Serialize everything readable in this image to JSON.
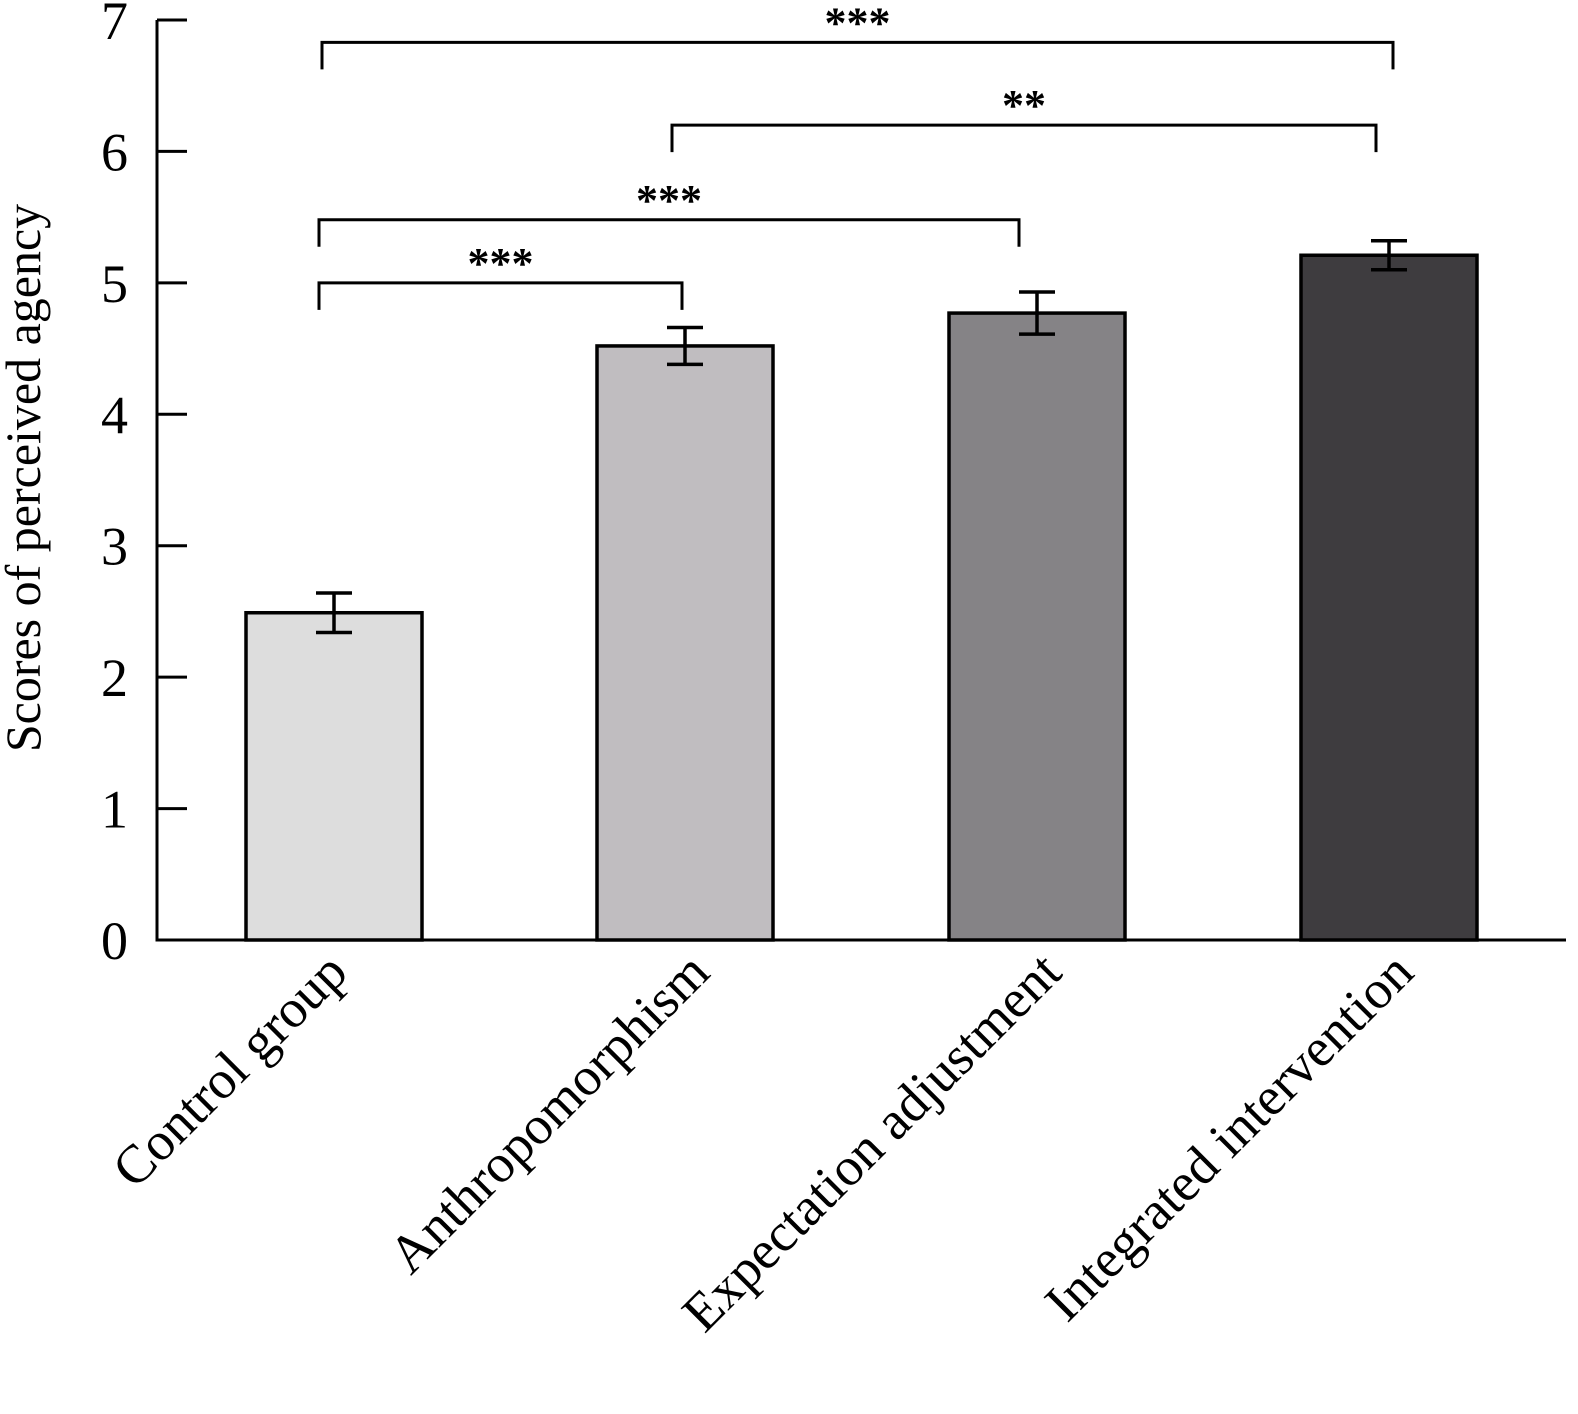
{
  "chart_data": {
    "type": "bar",
    "title": "",
    "xlabel": "",
    "ylabel": "Scores of perceived agency",
    "ylim": [
      0,
      7
    ],
    "yticks": [
      "0",
      "1",
      "2",
      "3",
      "4",
      "5",
      "6",
      "7"
    ],
    "categories": [
      "Control group",
      "Anthropomorphism",
      "Expectation adjustment",
      "Integrated intervention"
    ],
    "values": [
      2.49,
      4.52,
      4.77,
      5.21
    ],
    "errors": [
      0.15,
      0.14,
      0.16,
      0.11
    ],
    "colors": [
      "#dddddd",
      "#c0bdc0",
      "#858386",
      "#3e3c3f"
    ],
    "grid": false,
    "legend": "none",
    "significance": [
      {
        "from": 0,
        "to": 1,
        "label": "***",
        "level": 5.0
      },
      {
        "from": 0,
        "to": 2,
        "label": "***",
        "level": 5.48
      },
      {
        "from": 1,
        "to": 3,
        "label": "**",
        "level": 6.2
      },
      {
        "from": 0,
        "to": 3,
        "label": "***",
        "level": 6.83
      }
    ]
  }
}
